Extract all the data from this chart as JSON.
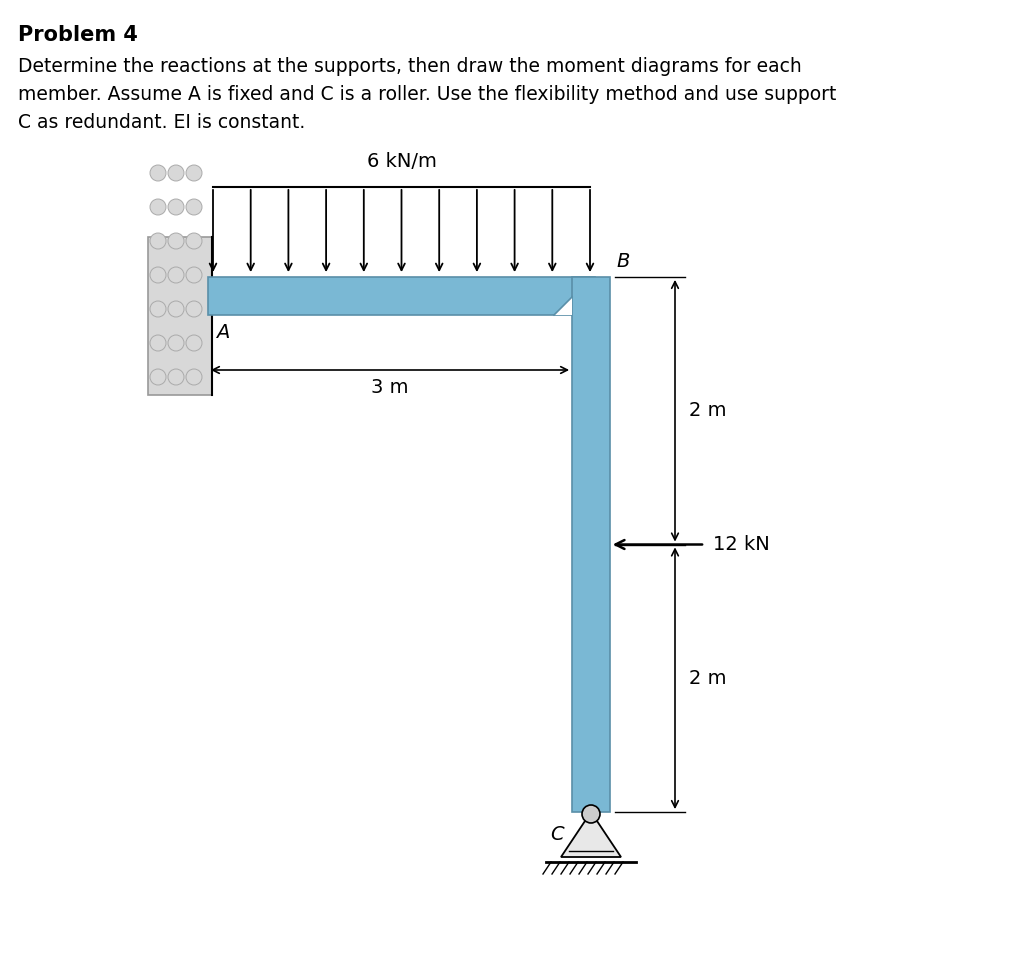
{
  "title_bold": "Problem 4",
  "description_line1": "Determine the reactions at the supports, then draw the moment diagrams for each",
  "description_line2": "member. Assume A is fixed and C is a roller. Use the flexibility method and use support",
  "description_line3": "C as redundant. EI is constant.",
  "beam_color": "#7ab8d4",
  "beam_edge_color": "#5a8fa8",
  "wall_fill": "#d8d8d8",
  "wall_edge": "#999999",
  "bg_color": "#ffffff",
  "label_A": "A",
  "label_B": "B",
  "label_C": "C",
  "dist_load_label": "6 kN/m",
  "horiz_dim_label": "3 m",
  "vert_dim_upper": "2 m",
  "vert_dim_lower": "2 m",
  "horiz_load_label": "12 kN",
  "figure_width": 10.24,
  "figure_height": 9.67,
  "dpi": 100
}
